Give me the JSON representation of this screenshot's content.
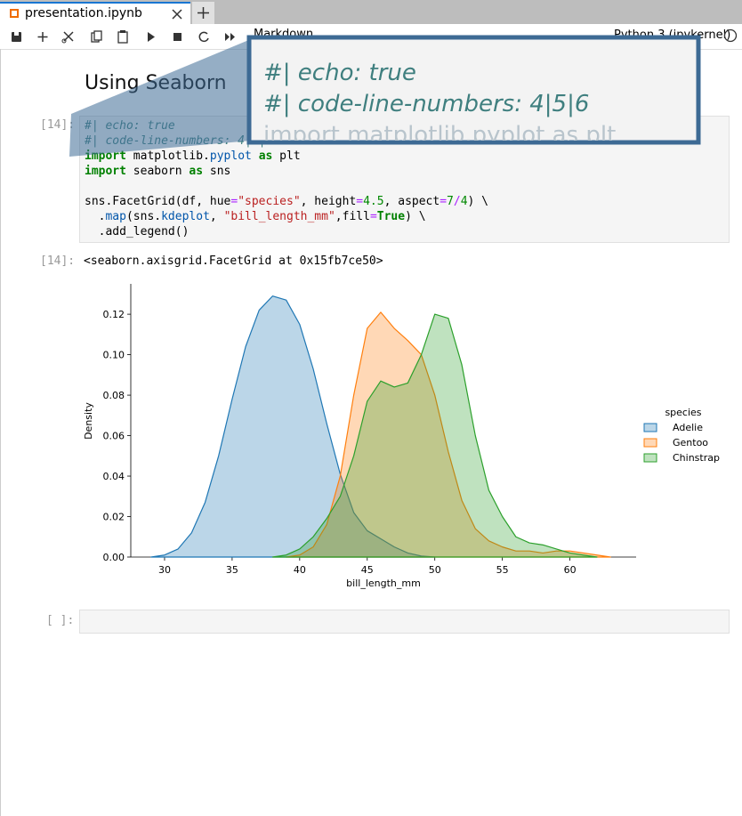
{
  "tab": {
    "title": "presentation.ipynb"
  },
  "toolbar": {
    "cell_type": "Markdown",
    "kernel": "Python 3 (ipykernel)"
  },
  "heading": "Using Seaborn",
  "code_cell": {
    "prompt": "[14]:",
    "lines": [
      [
        {
          "t": "#| echo: true",
          "c": "#408080",
          "i": true
        }
      ],
      [
        {
          "t": "#| code-line-numbers: 4|5|6",
          "c": "#408080",
          "i": true
        }
      ],
      [
        {
          "t": "import",
          "c": "#008000",
          "b": true
        },
        {
          "t": " matplotlib.",
          "c": "#000000"
        },
        {
          "t": "pyplot",
          "c": "#0055aa"
        },
        {
          "t": " ",
          "c": "#000000"
        },
        {
          "t": "as",
          "c": "#008000",
          "b": true
        },
        {
          "t": " plt",
          "c": "#000000"
        }
      ],
      [
        {
          "t": "import",
          "c": "#008000",
          "b": true
        },
        {
          "t": " seaborn ",
          "c": "#000000"
        },
        {
          "t": "as",
          "c": "#008000",
          "b": true
        },
        {
          "t": " sns",
          "c": "#000000"
        }
      ],
      [],
      [
        {
          "t": "sns.FacetGrid(df, hue",
          "c": "#000000"
        },
        {
          "t": "=",
          "c": "#aa22ff"
        },
        {
          "t": "\"species\"",
          "c": "#ba2121"
        },
        {
          "t": ", height",
          "c": "#000000"
        },
        {
          "t": "=",
          "c": "#aa22ff"
        },
        {
          "t": "4.5",
          "c": "#008800"
        },
        {
          "t": ", aspect",
          "c": "#000000"
        },
        {
          "t": "=",
          "c": "#aa22ff"
        },
        {
          "t": "7",
          "c": "#008800"
        },
        {
          "t": "/",
          "c": "#aa22ff"
        },
        {
          "t": "4",
          "c": "#008800"
        },
        {
          "t": ") \\",
          "c": "#000000"
        }
      ],
      [
        {
          "t": "  .",
          "c": "#000000"
        },
        {
          "t": "map",
          "c": "#0055aa"
        },
        {
          "t": "(sns.",
          "c": "#000000"
        },
        {
          "t": "kdeplot",
          "c": "#0055aa"
        },
        {
          "t": ", ",
          "c": "#000000"
        },
        {
          "t": "\"bill_length_mm\"",
          "c": "#ba2121"
        },
        {
          "t": ",fill",
          "c": "#000000"
        },
        {
          "t": "=",
          "c": "#aa22ff"
        },
        {
          "t": "True",
          "c": "#008000",
          "b": true
        },
        {
          "t": ") \\",
          "c": "#000000"
        }
      ],
      [
        {
          "t": "  .add_legend()",
          "c": "#000000"
        }
      ]
    ]
  },
  "output": {
    "prompt": "[14]:",
    "text": "<seaborn.axisgrid.FacetGrid at 0x15fb7ce50>"
  },
  "empty_cell": {
    "prompt": "[ ]:"
  },
  "zoom": {
    "lines": [
      "#| echo: true",
      "#| code-line-numbers: 4|5|6",
      "import matplotlib.pyplot as plt"
    ]
  },
  "chart_data": {
    "type": "area",
    "xlabel": "bill_length_mm",
    "ylabel": "Density",
    "legend_title": "species",
    "legend": "right",
    "x": [
      29,
      30,
      31,
      32,
      33,
      34,
      35,
      36,
      37,
      38,
      39,
      40,
      41,
      42,
      43,
      44,
      45,
      46,
      47,
      48,
      49,
      50,
      51,
      52,
      53,
      54,
      55,
      56,
      57,
      58,
      59,
      60,
      61,
      62,
      63
    ],
    "series": [
      {
        "name": "Adelie",
        "color": "#1f77b4",
        "values": [
          0,
          0.001,
          0.004,
          0.012,
          0.027,
          0.05,
          0.078,
          0.104,
          0.122,
          0.129,
          0.127,
          0.115,
          0.093,
          0.066,
          0.041,
          0.022,
          0.013,
          0.009,
          0.005,
          0.002,
          0.0005,
          0,
          null,
          null,
          null,
          null,
          null,
          null,
          null,
          null,
          null,
          null,
          null,
          null,
          null
        ]
      },
      {
        "name": "Gentoo",
        "color": "#ff7f0e",
        "values": [
          null,
          null,
          null,
          null,
          null,
          null,
          null,
          null,
          null,
          null,
          0,
          0.001,
          0.005,
          0.016,
          0.04,
          0.08,
          0.113,
          0.121,
          0.113,
          0.107,
          0.1,
          0.08,
          0.052,
          0.028,
          0.014,
          0.008,
          0.005,
          0.003,
          0.003,
          0.002,
          0.003,
          0.003,
          0.002,
          0.001,
          0
        ]
      },
      {
        "name": "Chinstrap",
        "color": "#2ca02c",
        "values": [
          null,
          null,
          null,
          null,
          null,
          null,
          null,
          null,
          null,
          0,
          0.001,
          0.004,
          0.01,
          0.019,
          0.03,
          0.05,
          0.077,
          0.087,
          0.084,
          0.086,
          0.1,
          0.12,
          0.118,
          0.095,
          0.06,
          0.033,
          0.02,
          0.01,
          0.007,
          0.006,
          0.004,
          0.002,
          0.001,
          0,
          null
        ]
      }
    ],
    "xlim": [
      27.5,
      64.9
    ],
    "ylim": [
      0,
      0.135
    ],
    "xticks": [
      30,
      35,
      40,
      45,
      50,
      55,
      60
    ],
    "yticks": [
      {
        "value": 0,
        "label": "0.00"
      },
      {
        "value": 0.02,
        "label": "0.02"
      },
      {
        "value": 0.04,
        "label": "0.04"
      },
      {
        "value": 0.06,
        "label": "0.06"
      },
      {
        "value": 0.08,
        "label": "0.08"
      },
      {
        "value": 0.1,
        "label": "0.10"
      },
      {
        "value": 0.12,
        "label": "0.12"
      }
    ],
    "fill_opacity": 0.3
  }
}
